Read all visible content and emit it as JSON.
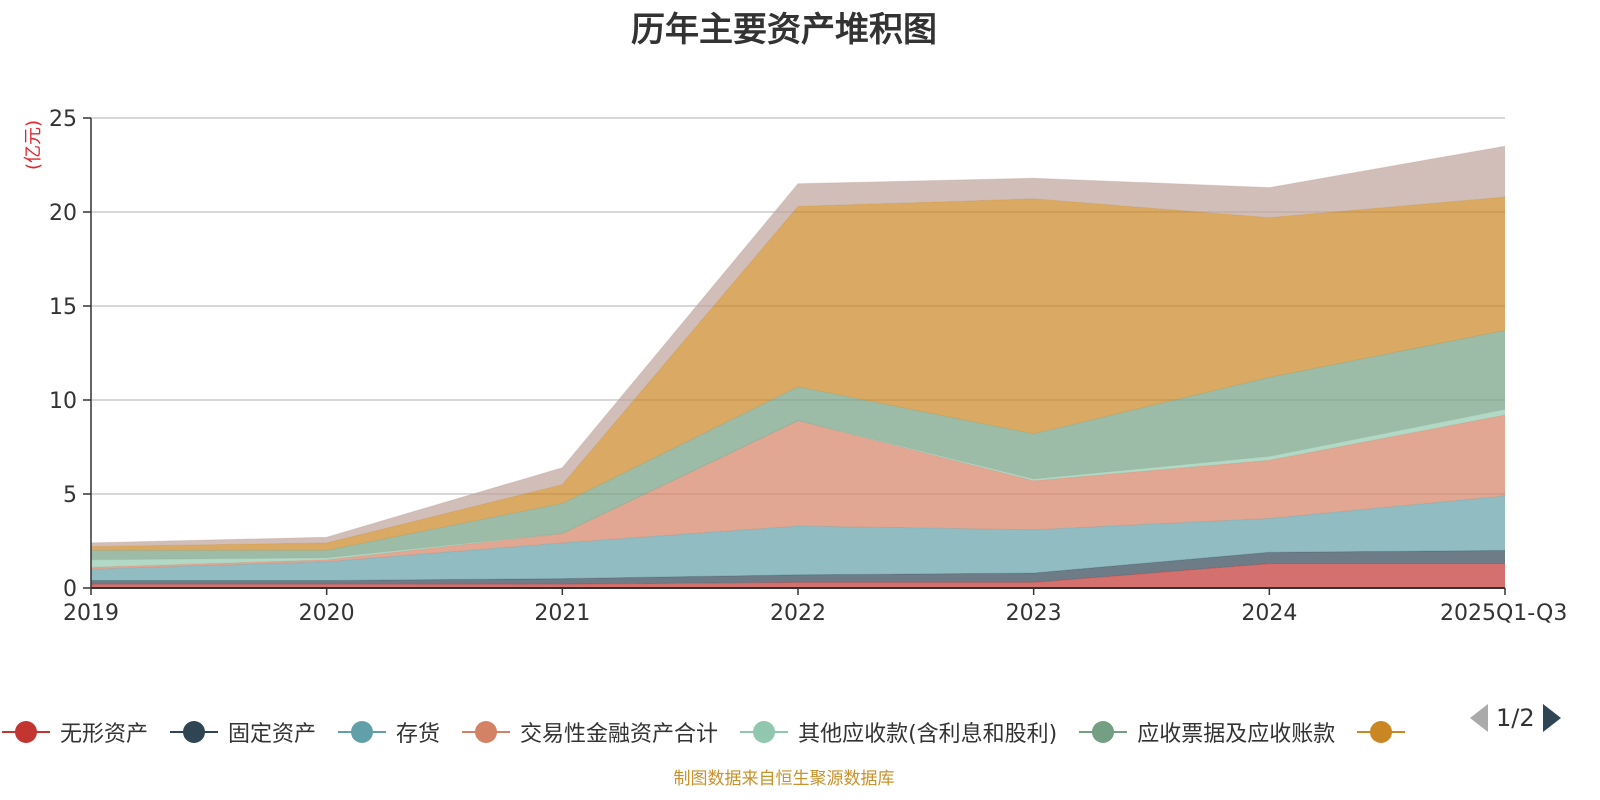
{
  "chart_data": {
    "type": "area",
    "stacked": true,
    "title": "历年主要资产堆积图",
    "ylabel": "(亿元)",
    "xlabel": "",
    "categories": [
      "2019",
      "2020",
      "2021",
      "2022",
      "2023",
      "2024",
      "2025Q1-Q3"
    ],
    "ylim": [
      0,
      25
    ],
    "yticks": [
      0,
      5,
      10,
      15,
      20,
      25
    ],
    "grid": true,
    "legend_position": "bottom",
    "legend_page": "1/2",
    "series": [
      {
        "name": "无形资产",
        "color": "#c23531",
        "values": [
          0.2,
          0.2,
          0.2,
          0.3,
          0.3,
          1.3,
          1.3
        ]
      },
      {
        "name": "固定资产",
        "color": "#2f4554",
        "values": [
          0.2,
          0.2,
          0.3,
          0.4,
          0.5,
          0.6,
          0.7
        ]
      },
      {
        "name": "存货",
        "color": "#61a0a8",
        "values": [
          0.6,
          1.0,
          1.9,
          2.6,
          2.3,
          1.8,
          2.9
        ]
      },
      {
        "name": "交易性金融资产合计",
        "color": "#d48265",
        "values": [
          0.1,
          0.1,
          0.5,
          5.6,
          2.6,
          3.1,
          4.3
        ]
      },
      {
        "name": "其他应收款(含利息和股利)",
        "color": "#91c7ae",
        "values": [
          0.4,
          0.1,
          0.0,
          0.0,
          0.1,
          0.2,
          0.3
        ]
      },
      {
        "name": "应收票据及应收账款",
        "color": "#749f83",
        "values": [
          0.5,
          0.4,
          1.6,
          1.8,
          2.4,
          4.2,
          4.2
        ]
      },
      {
        "name": "",
        "color": "#ca8622",
        "values": [
          0.2,
          0.4,
          1.0,
          9.6,
          12.5,
          8.5,
          7.1
        ]
      },
      {
        "name": "",
        "color": "#bda29a",
        "values": [
          0.2,
          0.3,
          0.9,
          1.2,
          1.1,
          1.6,
          2.7
        ]
      }
    ]
  },
  "source": "制图数据来自恒生聚源数据库"
}
